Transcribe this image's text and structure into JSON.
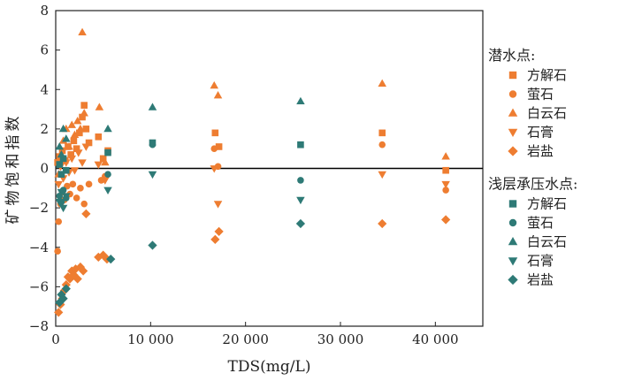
{
  "chart_data": {
    "type": "scatter",
    "xlabel": "TDS(mg/L)",
    "ylabel": "矿物饱和指数",
    "xlim": [
      0,
      45000
    ],
    "ylim": [
      -8,
      8
    ],
    "x_ticks": [
      0,
      10000,
      20000,
      30000,
      40000
    ],
    "x_tick_labels": [
      "0",
      "10 000",
      "20 000",
      "30 000",
      "40 000"
    ],
    "y_ticks": [
      8,
      6,
      4,
      2,
      0,
      -2,
      -4,
      -6,
      -8
    ],
    "y_tick_labels": [
      "8",
      "6",
      "4",
      "2",
      "0",
      "−2",
      "−4",
      "−6",
      "−8"
    ],
    "reference_line_y": 0,
    "grid": false,
    "legend_position": "right",
    "colors": {
      "shallow": "#ee7d31",
      "confined": "#2e7a76"
    },
    "legend": [
      {
        "group_title": "潜水点:",
        "color": "#ee7d31",
        "items": [
          {
            "label": "方解石",
            "marker": "square"
          },
          {
            "label": "萤石",
            "marker": "circle"
          },
          {
            "label": "白云石",
            "marker": "triangle-up"
          },
          {
            "label": "石膏",
            "marker": "triangle-down"
          },
          {
            "label": "岩盐",
            "marker": "diamond"
          }
        ]
      },
      {
        "group_title": "浅层承压水点:",
        "color": "#2e7a76",
        "items": [
          {
            "label": "方解石",
            "marker": "square"
          },
          {
            "label": "萤石",
            "marker": "circle"
          },
          {
            "label": "白云石",
            "marker": "triangle-up"
          },
          {
            "label": "石膏",
            "marker": "triangle-down"
          },
          {
            "label": "岩盐",
            "marker": "diamond"
          }
        ]
      }
    ],
    "series": [
      {
        "name": "潜水点 方解石",
        "group": "shallow",
        "marker": "square",
        "points": [
          [
            200,
            0.3
          ],
          [
            400,
            0.6
          ],
          [
            700,
            0.9
          ],
          [
            1000,
            0.4
          ],
          [
            1300,
            1.1
          ],
          [
            1600,
            0.7
          ],
          [
            1900,
            1.4
          ],
          [
            2200,
            1.0
          ],
          [
            2500,
            1.8
          ],
          [
            2800,
            2.6
          ],
          [
            3000,
            3.2
          ],
          [
            3200,
            2.0
          ],
          [
            3500,
            1.3
          ],
          [
            4500,
            1.6
          ],
          [
            5000,
            0.5
          ],
          [
            5500,
            0.9
          ],
          [
            16800,
            1.8
          ],
          [
            17200,
            1.1
          ],
          [
            34400,
            1.8
          ],
          [
            41100,
            -0.1
          ]
        ]
      },
      {
        "name": "潜水点 萤石",
        "group": "shallow",
        "marker": "circle",
        "points": [
          [
            200,
            -4.2
          ],
          [
            300,
            -2.7
          ],
          [
            500,
            -1.8
          ],
          [
            700,
            -1.2
          ],
          [
            900,
            -1.6
          ],
          [
            1200,
            -0.9
          ],
          [
            1500,
            -1.3
          ],
          [
            1800,
            -0.8
          ],
          [
            2200,
            -1.5
          ],
          [
            2600,
            -1.0
          ],
          [
            3000,
            -1.8
          ],
          [
            3500,
            -0.8
          ],
          [
            4800,
            -0.6
          ],
          [
            5200,
            -0.4
          ],
          [
            16700,
            1.0
          ],
          [
            17100,
            0.1
          ],
          [
            34400,
            1.2
          ],
          [
            41100,
            -1.1
          ]
        ]
      },
      {
        "name": "潜水点 白云石",
        "group": "shallow",
        "marker": "triangle-up",
        "points": [
          [
            300,
            -0.3
          ],
          [
            500,
            0.5
          ],
          [
            800,
            1.4
          ],
          [
            1100,
            2.0
          ],
          [
            1400,
            1.1
          ],
          [
            1700,
            2.2
          ],
          [
            2000,
            1.7
          ],
          [
            2300,
            2.4
          ],
          [
            2800,
            6.9
          ],
          [
            2600,
            2.0
          ],
          [
            3000,
            2.8
          ],
          [
            4600,
            3.1
          ],
          [
            5200,
            0.3
          ],
          [
            16700,
            4.2
          ],
          [
            17100,
            3.7
          ],
          [
            34400,
            4.3
          ],
          [
            41100,
            0.6
          ]
        ]
      },
      {
        "name": "潜水点 石膏",
        "group": "shallow",
        "marker": "triangle-down",
        "points": [
          [
            300,
            -0.8
          ],
          [
            500,
            0.1
          ],
          [
            800,
            -0.5
          ],
          [
            1100,
            0.3
          ],
          [
            1400,
            -0.2
          ],
          [
            1700,
            0.5
          ],
          [
            2000,
            -0.1
          ],
          [
            2400,
            0.8
          ],
          [
            2800,
            0.3
          ],
          [
            3200,
            1.1
          ],
          [
            4500,
            0.2
          ],
          [
            5200,
            -0.6
          ],
          [
            16700,
            0.0
          ],
          [
            17100,
            -1.8
          ],
          [
            34400,
            -0.3
          ],
          [
            41100,
            -0.8
          ]
        ]
      },
      {
        "name": "潜水点 岩盐",
        "group": "shallow",
        "marker": "diamond",
        "points": [
          [
            300,
            -7.3
          ],
          [
            500,
            -6.9
          ],
          [
            700,
            -6.6
          ],
          [
            900,
            -6.2
          ],
          [
            1100,
            -5.9
          ],
          [
            1300,
            -5.5
          ],
          [
            1500,
            -5.6
          ],
          [
            1700,
            -5.2
          ],
          [
            1900,
            -5.4
          ],
          [
            2100,
            -5.1
          ],
          [
            2300,
            -5.6
          ],
          [
            2600,
            -5.0
          ],
          [
            2900,
            -5.2
          ],
          [
            3200,
            -2.3
          ],
          [
            4500,
            -4.5
          ],
          [
            5000,
            -4.4
          ],
          [
            5400,
            -4.6
          ],
          [
            16800,
            -3.6
          ],
          [
            17200,
            -3.2
          ],
          [
            34400,
            -2.8
          ],
          [
            41100,
            -2.6
          ]
        ]
      },
      {
        "name": "浅层承压水点 方解石",
        "group": "confined",
        "marker": "square",
        "points": [
          [
            400,
            0.2
          ],
          [
            600,
            -0.3
          ],
          [
            800,
            0.5
          ],
          [
            1100,
            -0.1
          ],
          [
            5500,
            0.8
          ],
          [
            10200,
            1.3
          ],
          [
            25800,
            1.2
          ]
        ]
      },
      {
        "name": "浅层承压水点 萤石",
        "group": "confined",
        "marker": "circle",
        "points": [
          [
            400,
            -1.4
          ],
          [
            600,
            -1.7
          ],
          [
            800,
            -1.1
          ],
          [
            1100,
            -1.5
          ],
          [
            5500,
            -0.3
          ],
          [
            10200,
            1.2
          ],
          [
            25800,
            -0.6
          ]
        ]
      },
      {
        "name": "浅层承压水点 白云石",
        "group": "confined",
        "marker": "triangle-up",
        "points": [
          [
            400,
            1.1
          ],
          [
            600,
            0.7
          ],
          [
            800,
            2.0
          ],
          [
            1100,
            1.5
          ],
          [
            5500,
            2.0
          ],
          [
            10200,
            3.1
          ],
          [
            25800,
            3.4
          ]
        ]
      },
      {
        "name": "浅层承压水点 石膏",
        "group": "confined",
        "marker": "triangle-down",
        "points": [
          [
            400,
            -1.7
          ],
          [
            600,
            -1.2
          ],
          [
            800,
            -2.0
          ],
          [
            1100,
            -1.4
          ],
          [
            5500,
            -1.1
          ],
          [
            10200,
            -0.3
          ],
          [
            25800,
            -1.6
          ]
        ]
      },
      {
        "name": "浅层承压水点 岩盐",
        "group": "confined",
        "marker": "diamond",
        "points": [
          [
            400,
            -6.8
          ],
          [
            600,
            -6.4
          ],
          [
            800,
            -6.6
          ],
          [
            1100,
            -6.1
          ],
          [
            5800,
            -4.6
          ],
          [
            10200,
            -3.9
          ],
          [
            25800,
            -2.8
          ]
        ]
      }
    ]
  }
}
